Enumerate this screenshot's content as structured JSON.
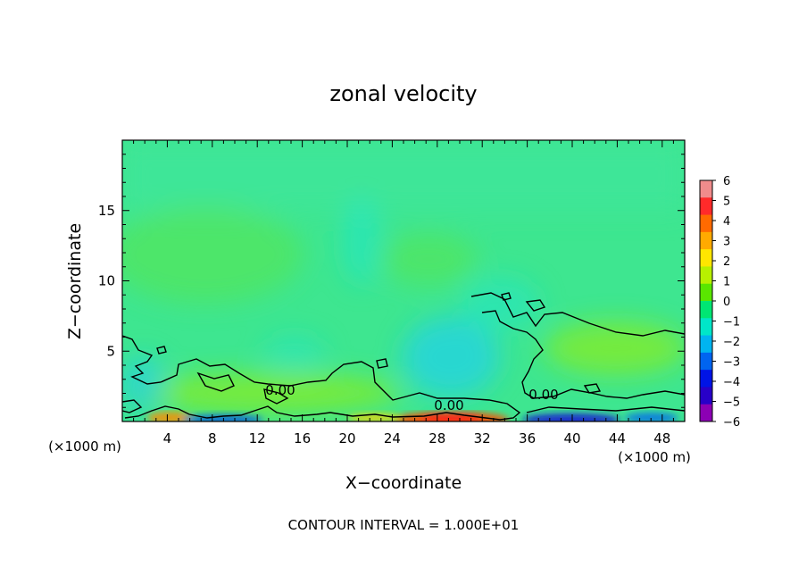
{
  "chart_data": {
    "type": "heatmap",
    "title": "zonal velocity",
    "xlabel": "X−coordinate",
    "ylabel": "Z−coordinate",
    "x_unit_left": "(×1000 m)",
    "x_unit_right": "(×1000 m)",
    "xlim": [
      0,
      50
    ],
    "ylim": [
      0,
      20
    ],
    "x_ticks": [
      4,
      8,
      12,
      16,
      20,
      24,
      28,
      32,
      36,
      40,
      44,
      48
    ],
    "y_ticks": [
      5,
      10,
      15
    ],
    "colorbar": {
      "ticks": [
        6,
        5,
        4,
        3,
        2,
        1,
        0,
        -1,
        -2,
        -3,
        -4,
        -5,
        -6
      ],
      "tick_labels": [
        "6",
        "5",
        "4",
        "3",
        "2",
        "1",
        "0",
        "−1",
        "−2",
        "−3",
        "−4",
        "−5",
        "−6"
      ],
      "colors": [
        "#f08c8c",
        "#ff2a2a",
        "#ff6a00",
        "#ffaa00",
        "#ffe600",
        "#b8f000",
        "#5ae600",
        "#00e673",
        "#00e6c8",
        "#00b4f0",
        "#0064f0",
        "#0014e6",
        "#2800c8",
        "#8c00b4"
      ]
    },
    "contour_labels": [
      {
        "text": "0.00",
        "x": 26.5,
        "z": 1.3
      },
      {
        "text": "0.00",
        "x": 36.5,
        "z": 2.1
      },
      {
        "text": "0.00",
        "x": 15.5,
        "z": 2.5
      }
    ],
    "contour_interval_text": "CONTOUR INTERVAL = 1.000E+01"
  }
}
